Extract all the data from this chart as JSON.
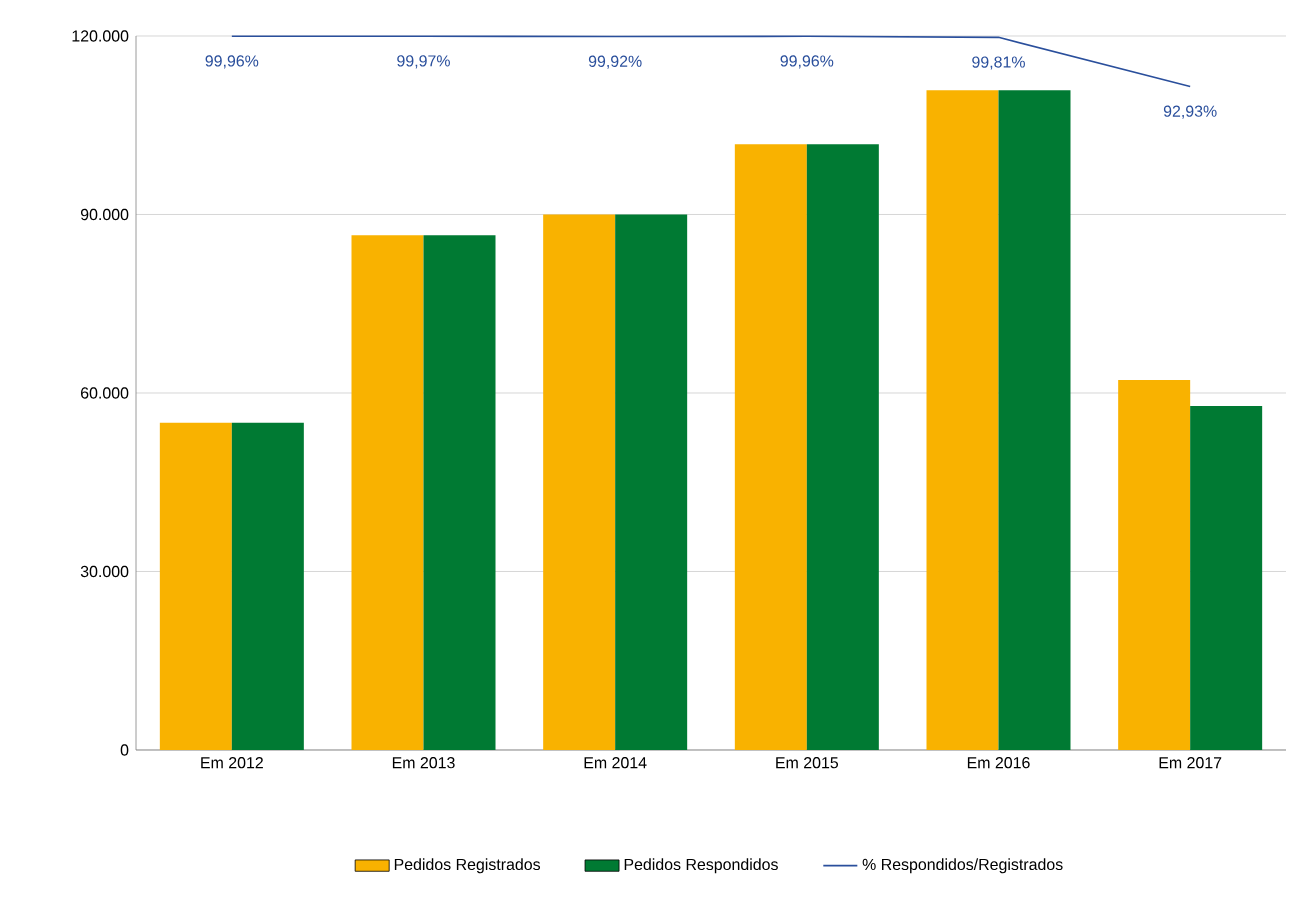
{
  "chart_data": {
    "type": "bar",
    "categories": [
      "Em 2012",
      "Em 2013",
      "Em 2014",
      "Em 2015",
      "Em 2016",
      "Em 2017"
    ],
    "series": [
      {
        "name": "Pedidos Registrados",
        "color": "#f9b200",
        "values": [
          55000,
          86500,
          90000,
          101800,
          110900,
          62200
        ]
      },
      {
        "name": "Pedidos Respondidos",
        "color": "#007a33",
        "values": [
          55000,
          86500,
          90000,
          101800,
          110900,
          57800
        ]
      },
      {
        "name": "% Respondidos/Registrados",
        "type": "line",
        "axis": "y2",
        "color": "#2a4f9c",
        "values": [
          99.96,
          99.97,
          99.92,
          99.96,
          99.81,
          92.93
        ],
        "value_labels": [
          "99,96%",
          "99,97%",
          "99,92%",
          "99,96%",
          "99,81%",
          "92,93%"
        ]
      }
    ],
    "ylim": [
      0,
      120000
    ],
    "yticks": [
      0,
      {
        "value": 30000,
        "label": "30.000"
      },
      {
        "value": 60000,
        "label": "60.000"
      },
      {
        "value": 90000,
        "label": "90.000"
      },
      {
        "value": 120000,
        "label": "120.000"
      }
    ],
    "y2lim": [
      0,
      100
    ],
    "grid": "y",
    "legend": "bottom"
  }
}
